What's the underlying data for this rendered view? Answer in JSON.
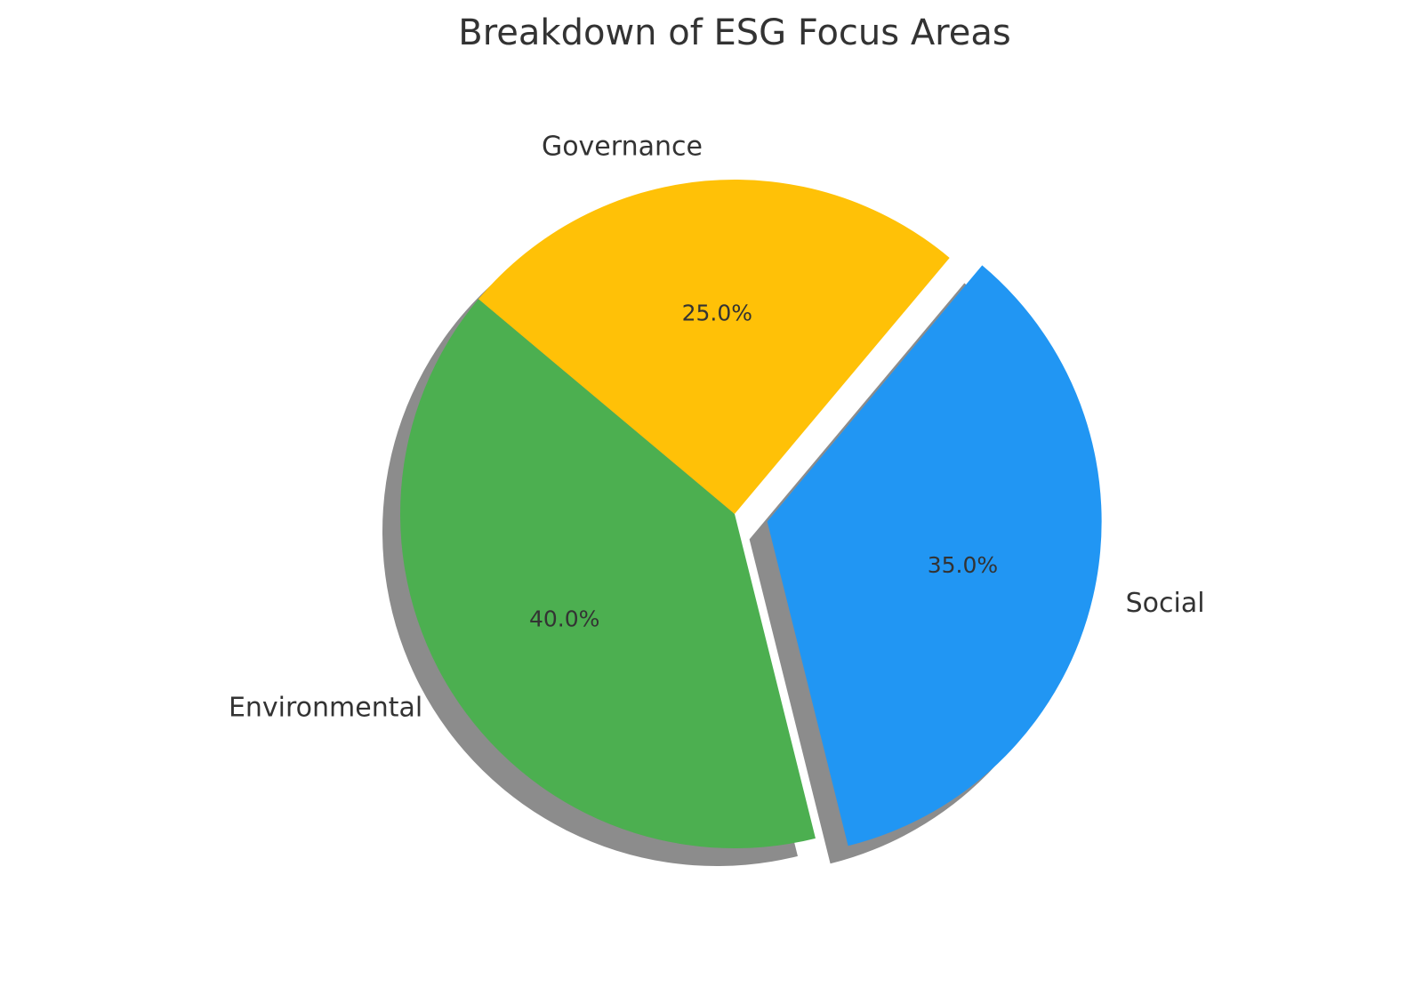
{
  "chart_data": {
    "type": "pie",
    "title": "Breakdown of ESG Focus Areas",
    "start_angle_deg": 140,
    "direction": "counterclockwise",
    "shadow": true,
    "slices": [
      {
        "label": "Environmental",
        "value": 40.0,
        "pct_text": "40.0%",
        "color": "#4CAF50",
        "exploded": false
      },
      {
        "label": "Social",
        "value": 35.0,
        "pct_text": "35.0%",
        "color": "#2196F3",
        "exploded": true
      },
      {
        "label": "Governance",
        "value": 25.0,
        "pct_text": "25.0%",
        "color": "#FFC107",
        "exploded": false
      }
    ]
  }
}
